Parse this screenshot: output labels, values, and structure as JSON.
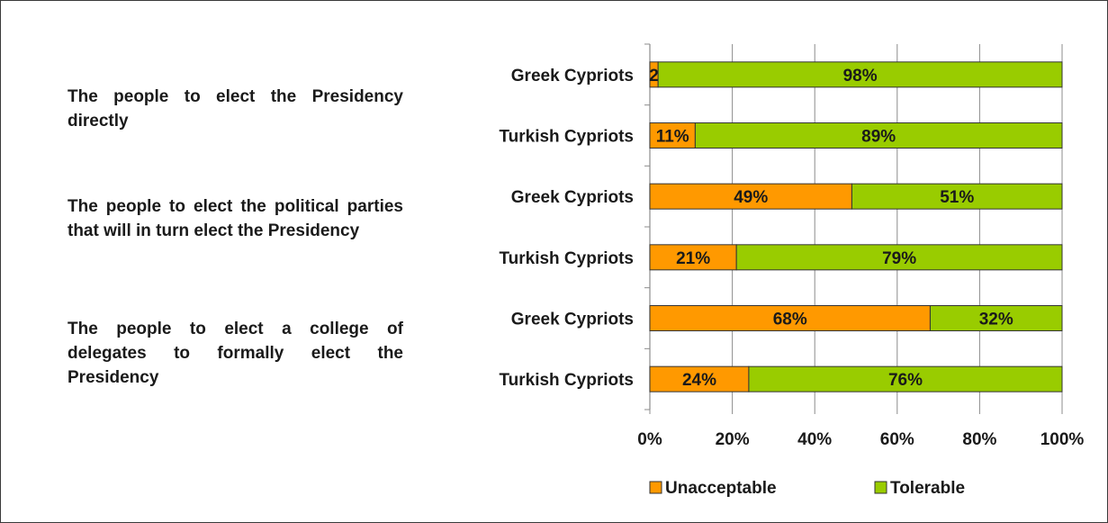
{
  "questions": [
    "The people to elect the Presidency directly",
    "The people to elect the political parties that will in turn elect the Presidency",
    "The people to elect a college of delegates to formally elect the Presidency"
  ],
  "colors": {
    "unacceptable": "#ff9900",
    "tolerable": "#99cc00",
    "border": "#333333",
    "grid": "#8c8c8c"
  },
  "chart_data": {
    "type": "bar",
    "orientation": "horizontal",
    "stacked": true,
    "percent": true,
    "categories": [
      "Greek Cypriots",
      "Turkish Cypriots",
      "Greek Cypriots",
      "Turkish Cypriots",
      "Greek Cypriots",
      "Turkish Cypriots"
    ],
    "series": [
      {
        "name": "Unacceptable",
        "values": [
          2,
          11,
          49,
          21,
          68,
          24
        ],
        "labels": [
          "2",
          "11%",
          "49%",
          "21%",
          "68%",
          "24%"
        ]
      },
      {
        "name": "Tolerable",
        "values": [
          98,
          89,
          51,
          79,
          32,
          76
        ],
        "labels": [
          "98%",
          "89%",
          "51%",
          "79%",
          "32%",
          "76%"
        ]
      }
    ],
    "xlim": [
      0,
      100
    ],
    "x_ticks": [
      "0%",
      "20%",
      "40%",
      "60%",
      "80%",
      "100%"
    ],
    "grid": true,
    "legend_position": "bottom"
  }
}
